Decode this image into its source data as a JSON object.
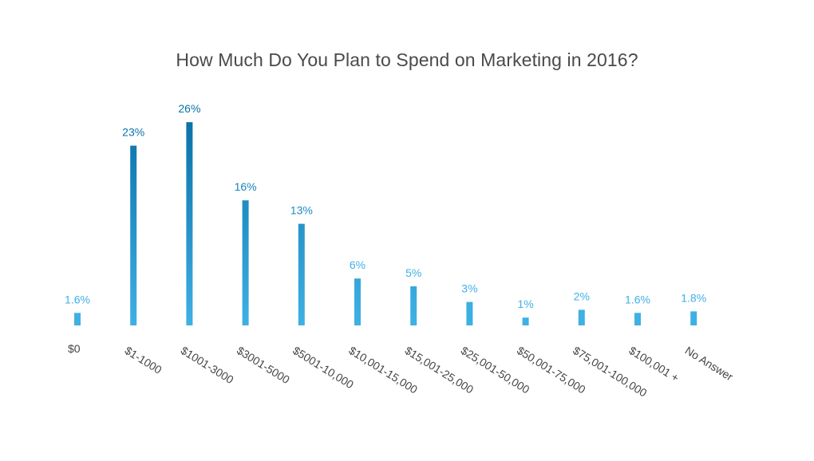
{
  "chart_data": {
    "type": "bar",
    "title": "How Much Do You Plan to Spend on Marketing in 2016?",
    "xlabel": "",
    "ylabel": "",
    "ylim": [
      0,
      28
    ],
    "grid": false,
    "legend": "none",
    "categories": [
      "$0",
      "$1-1000",
      "$1001-3000",
      "$3001-5000",
      "$5001-10,000",
      "$10,001-15,000",
      "$15,001-25,000",
      "$25,001-50,000",
      "$50,001-75,000",
      "$75,001-100,000",
      "$100,001 +",
      "No Answer"
    ],
    "values": [
      1.6,
      23,
      26,
      16,
      13,
      6,
      5,
      3,
      1,
      2,
      1.6,
      1.8
    ],
    "data_labels": [
      "1.6%",
      "23%",
      "26%",
      "16%",
      "13%",
      "6%",
      "5%",
      "3%",
      "1%",
      "2%",
      "1.6%",
      "1.8%"
    ],
    "colors": {
      "light": "#3fb0e4",
      "dark": "#0a72a8",
      "title": "#4a4a4a",
      "tick": "#444444"
    }
  }
}
